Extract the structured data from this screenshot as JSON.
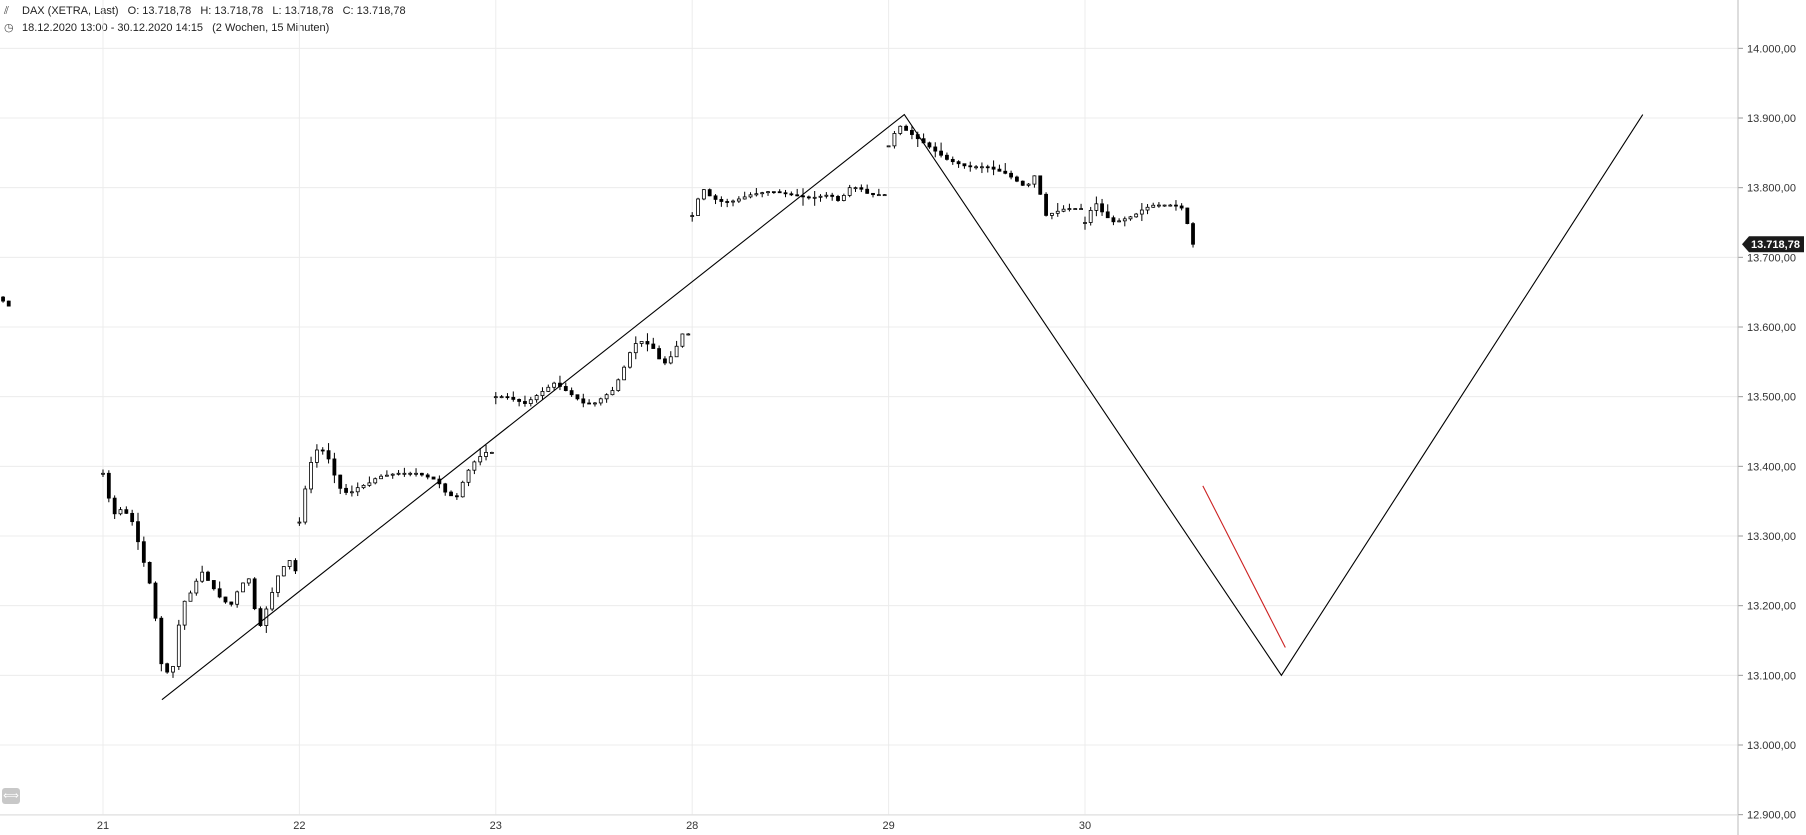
{
  "header": {
    "icon": "candlestick-icon",
    "instrument": "DAX (XETRA, Last)",
    "open": "O: 13.718,78",
    "high": "H: 13.718,78",
    "low": "L: 13.718,78",
    "close": "C: 13.718,78",
    "clock_icon": "clock-icon",
    "range": "18.12.2020 13:00 - 30.12.2020 14:15",
    "interval": "(2 Wochen, 15 Minuten)"
  },
  "chart_data": {
    "type": "candlestick",
    "title": "DAX (XETRA, Last)",
    "ylim": [
      12880,
      14060
    ],
    "grid": true,
    "y_ticks": [
      "14.000,00",
      "13.900,00",
      "13.800,00",
      "13.700,00",
      "13.600,00",
      "13.500,00",
      "13.400,00",
      "13.300,00",
      "13.200,00",
      "13.100,00",
      "13.000,00",
      "12.900,00"
    ],
    "y_tick_values": [
      14000,
      13900,
      13800,
      13700,
      13600,
      13500,
      13400,
      13300,
      13200,
      13100,
      13000,
      12900
    ],
    "x_ticks": [
      "21",
      "22",
      "23",
      "28",
      "29",
      "30"
    ],
    "x_tick_positions": [
      1,
      2,
      3,
      4,
      5,
      6
    ],
    "last_price": 13718.78,
    "last_price_label": "13.718,78",
    "sessions": [
      {
        "day": "18",
        "start": 0.0,
        "end": 0.52,
        "path": [
          [
            0.0,
            13715
          ],
          [
            0.05,
            13690
          ],
          [
            0.1,
            13712
          ],
          [
            0.2,
            13715
          ],
          [
            0.25,
            13695
          ],
          [
            0.3,
            13680
          ],
          [
            0.35,
            13655
          ],
          [
            0.42,
            13650
          ],
          [
            0.48,
            13640
          ],
          [
            0.52,
            13630
          ]
        ]
      },
      {
        "day": "21",
        "start": 1.0,
        "end": 1.98,
        "path": [
          [
            1.0,
            13390
          ],
          [
            1.05,
            13330
          ],
          [
            1.1,
            13340
          ],
          [
            1.15,
            13320
          ],
          [
            1.2,
            13270
          ],
          [
            1.25,
            13220
          ],
          [
            1.3,
            13110
          ],
          [
            1.35,
            13100
          ],
          [
            1.4,
            13200
          ],
          [
            1.45,
            13220
          ],
          [
            1.5,
            13250
          ],
          [
            1.55,
            13230
          ],
          [
            1.6,
            13210
          ],
          [
            1.65,
            13200
          ],
          [
            1.7,
            13230
          ],
          [
            1.75,
            13240
          ],
          [
            1.78,
            13180
          ],
          [
            1.8,
            13170
          ],
          [
            1.85,
            13210
          ],
          [
            1.9,
            13250
          ],
          [
            1.95,
            13265
          ],
          [
            1.98,
            13250
          ]
        ]
      },
      {
        "day": "22",
        "start": 2.0,
        "end": 2.98,
        "path": [
          [
            2.0,
            13320
          ],
          [
            2.05,
            13400
          ],
          [
            2.1,
            13430
          ],
          [
            2.15,
            13410
          ],
          [
            2.2,
            13370
          ],
          [
            2.25,
            13360
          ],
          [
            2.3,
            13370
          ],
          [
            2.35,
            13375
          ],
          [
            2.4,
            13385
          ],
          [
            2.5,
            13390
          ],
          [
            2.6,
            13390
          ],
          [
            2.7,
            13380
          ],
          [
            2.75,
            13360
          ],
          [
            2.8,
            13355
          ],
          [
            2.85,
            13390
          ],
          [
            2.9,
            13410
          ],
          [
            2.95,
            13420
          ],
          [
            2.98,
            13420
          ]
        ]
      },
      {
        "day": "23",
        "start": 3.0,
        "end": 3.98,
        "path": [
          [
            3.0,
            13500
          ],
          [
            3.05,
            13500
          ],
          [
            3.1,
            13495
          ],
          [
            3.15,
            13490
          ],
          [
            3.2,
            13500
          ],
          [
            3.25,
            13510
          ],
          [
            3.3,
            13520
          ],
          [
            3.35,
            13510
          ],
          [
            3.4,
            13500
          ],
          [
            3.45,
            13490
          ],
          [
            3.5,
            13490
          ],
          [
            3.55,
            13500
          ],
          [
            3.6,
            13510
          ],
          [
            3.65,
            13540
          ],
          [
            3.7,
            13575
          ],
          [
            3.75,
            13580
          ],
          [
            3.8,
            13570
          ],
          [
            3.85,
            13545
          ],
          [
            3.9,
            13560
          ],
          [
            3.95,
            13590
          ],
          [
            3.98,
            13590
          ]
        ]
      },
      {
        "day": "28",
        "start": 4.0,
        "end": 4.98,
        "path": [
          [
            4.0,
            13760
          ],
          [
            4.05,
            13800
          ],
          [
            4.1,
            13785
          ],
          [
            4.15,
            13780
          ],
          [
            4.2,
            13780
          ],
          [
            4.25,
            13785
          ],
          [
            4.3,
            13790
          ],
          [
            4.4,
            13795
          ],
          [
            4.5,
            13790
          ],
          [
            4.6,
            13785
          ],
          [
            4.7,
            13790
          ],
          [
            4.75,
            13780
          ],
          [
            4.8,
            13800
          ],
          [
            4.85,
            13800
          ],
          [
            4.9,
            13790
          ],
          [
            4.95,
            13790
          ],
          [
            4.98,
            13790
          ]
        ]
      },
      {
        "day": "29",
        "start": 5.0,
        "end": 5.98,
        "path": [
          [
            5.0,
            13860
          ],
          [
            5.05,
            13890
          ],
          [
            5.1,
            13880
          ],
          [
            5.15,
            13870
          ],
          [
            5.2,
            13860
          ],
          [
            5.25,
            13850
          ],
          [
            5.3,
            13840
          ],
          [
            5.4,
            13830
          ],
          [
            5.5,
            13830
          ],
          [
            5.55,
            13825
          ],
          [
            5.6,
            13820
          ],
          [
            5.65,
            13810
          ],
          [
            5.7,
            13800
          ],
          [
            5.75,
            13820
          ],
          [
            5.78,
            13780
          ],
          [
            5.8,
            13760
          ],
          [
            5.85,
            13765
          ],
          [
            5.9,
            13770
          ],
          [
            5.95,
            13770
          ],
          [
            5.98,
            13770
          ]
        ]
      },
      {
        "day": "30",
        "start": 6.0,
        "end": 6.55,
        "path": [
          [
            6.0,
            13750
          ],
          [
            6.05,
            13780
          ],
          [
            6.1,
            13760
          ],
          [
            6.15,
            13750
          ],
          [
            6.2,
            13755
          ],
          [
            6.25,
            13760
          ],
          [
            6.3,
            13770
          ],
          [
            6.35,
            13775
          ],
          [
            6.4,
            13775
          ],
          [
            6.45,
            13775
          ],
          [
            6.5,
            13770
          ],
          [
            6.55,
            13718.78
          ]
        ]
      }
    ],
    "drawings": [
      {
        "name": "trendline",
        "color": "#000000",
        "points": [
          [
            1.3,
            13065
          ],
          [
            5.08,
            13905
          ],
          [
            7.0,
            13100
          ],
          [
            8.84,
            13905
          ]
        ]
      },
      {
        "name": "red-line",
        "color": "#cc2222",
        "points": [
          [
            6.6,
            13372
          ],
          [
            7.02,
            13140
          ]
        ]
      }
    ]
  }
}
